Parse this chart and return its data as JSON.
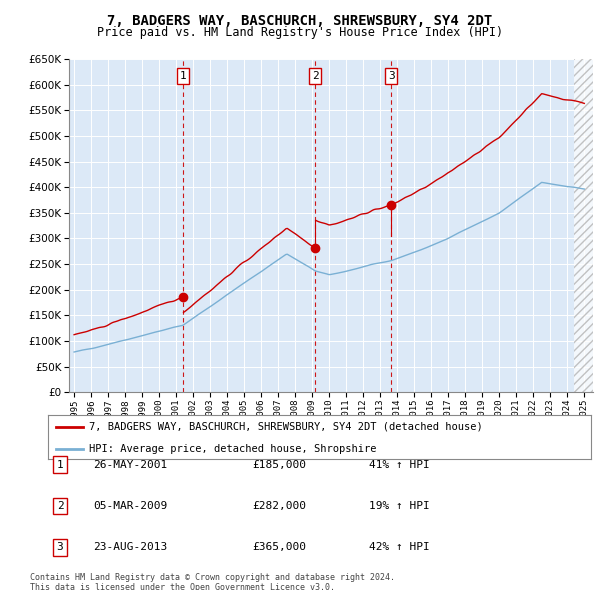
{
  "title": "7, BADGERS WAY, BASCHURCH, SHREWSBURY, SY4 2DT",
  "subtitle": "Price paid vs. HM Land Registry's House Price Index (HPI)",
  "plot_bg_color": "#dce9f7",
  "ylim": [
    0,
    650000
  ],
  "yticks": [
    0,
    50000,
    100000,
    150000,
    200000,
    250000,
    300000,
    350000,
    400000,
    450000,
    500000,
    550000,
    600000,
    650000
  ],
  "sale_color": "#cc0000",
  "hpi_color": "#7ab0d4",
  "vline_color": "#cc0000",
  "transactions": [
    {
      "label": "1",
      "date": "26-MAY-2001",
      "price": 185000,
      "pct": "41%",
      "x_year": 2001.4
    },
    {
      "label": "2",
      "date": "05-MAR-2009",
      "price": 282000,
      "pct": "19%",
      "x_year": 2009.17
    },
    {
      "label": "3",
      "date": "23-AUG-2013",
      "price": 365000,
      "pct": "42%",
      "x_year": 2013.64
    }
  ],
  "legend_sale": "7, BADGERS WAY, BASCHURCH, SHREWSBURY, SY4 2DT (detached house)",
  "legend_hpi": "HPI: Average price, detached house, Shropshire",
  "footnote1": "Contains HM Land Registry data © Crown copyright and database right 2024.",
  "footnote2": "This data is licensed under the Open Government Licence v3.0.",
  "xlim_start": 1994.7,
  "xlim_end": 2025.5,
  "hatch_start": 2024.42
}
